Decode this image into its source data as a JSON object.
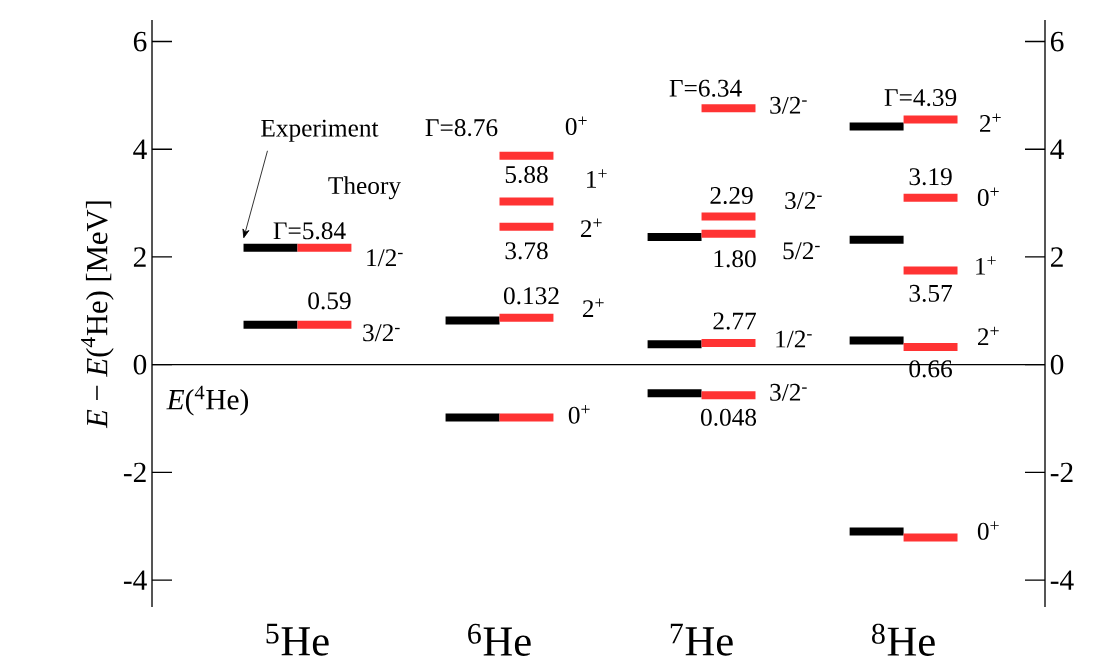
{
  "chart_data": {
    "type": "line",
    "ylabel": "*E* − *E*($^{4}$He)  [MeV]",
    "xlim": [
      4.28,
      8.7
    ],
    "xticks": [
      {
        "value": 5,
        "label": "$^{5}$He"
      },
      {
        "value": 6,
        "label": "$^{6}$He"
      },
      {
        "value": 7,
        "label": "$^{7}$He"
      },
      {
        "value": 8,
        "label": "$^{8}$He"
      }
    ],
    "ylim": [
      -4.5,
      6.4
    ],
    "yticks": [
      -4,
      -2,
      0,
      2,
      4,
      6
    ],
    "y2lim": [
      -4.5,
      6.4
    ],
    "y2ticks": [
      -4,
      -2,
      0,
      2,
      4,
      6
    ],
    "series": [
      {
        "color": "#000000",
        "x": [
          4.733,
          5.0
        ],
        "values": [
          2.17,
          2.17
        ]
      },
      {
        "color": "#000000",
        "x": [
          4.733,
          5.0
        ],
        "values": [
          0.74,
          0.74
        ]
      },
      {
        "color": "#000000",
        "x": [
          5.733,
          6.0
        ],
        "values": [
          0.82,
          0.82
        ]
      },
      {
        "color": "#000000",
        "x": [
          5.733,
          6.0
        ],
        "values": [
          -0.98,
          -0.98
        ]
      },
      {
        "color": "#000000",
        "x": [
          6.733,
          7.0
        ],
        "values": [
          2.37,
          2.37
        ]
      },
      {
        "color": "#000000",
        "x": [
          6.733,
          7.0
        ],
        "values": [
          0.38,
          0.38
        ]
      },
      {
        "color": "#000000",
        "x": [
          6.733,
          7.0
        ],
        "values": [
          -0.53,
          -0.53
        ]
      },
      {
        "color": "#000000",
        "x": [
          7.733,
          8.0
        ],
        "values": [
          4.42,
          4.42
        ]
      },
      {
        "color": "#000000",
        "x": [
          7.733,
          8.0
        ],
        "values": [
          2.32,
          2.32
        ]
      },
      {
        "color": "#000000",
        "x": [
          7.733,
          8.0
        ],
        "values": [
          0.45,
          0.45
        ]
      },
      {
        "color": "#000000",
        "x": [
          7.733,
          8.0
        ],
        "values": [
          -3.1,
          -3.1
        ]
      },
      {
        "color": "#ff3333",
        "x": [
          5.0,
          5.267
        ],
        "values": [
          2.17,
          2.17
        ]
      },
      {
        "color": "#ff3333",
        "x": [
          5.0,
          5.267
        ],
        "values": [
          0.74,
          0.74
        ]
      },
      {
        "color": "#ff3333",
        "x": [
          6.0,
          6.267
        ],
        "values": [
          3.88,
          3.88
        ]
      },
      {
        "color": "#ff3333",
        "x": [
          6.0,
          6.267
        ],
        "values": [
          3.03,
          3.03
        ]
      },
      {
        "color": "#ff3333",
        "x": [
          6.0,
          6.267
        ],
        "values": [
          2.56,
          2.56
        ]
      },
      {
        "color": "#ff3333",
        "x": [
          6.0,
          6.267
        ],
        "values": [
          0.87,
          0.87
        ]
      },
      {
        "color": "#ff3333",
        "x": [
          6.0,
          6.267
        ],
        "values": [
          -0.98,
          -0.98
        ]
      },
      {
        "color": "#ff3333",
        "x": [
          7.0,
          7.267
        ],
        "values": [
          4.76,
          4.76
        ]
      },
      {
        "color": "#ff3333",
        "x": [
          7.0,
          7.267
        ],
        "values": [
          2.75,
          2.75
        ]
      },
      {
        "color": "#ff3333",
        "x": [
          7.0,
          7.267
        ],
        "values": [
          2.43,
          2.43
        ]
      },
      {
        "color": "#ff3333",
        "x": [
          7.0,
          7.267
        ],
        "values": [
          0.4,
          0.4
        ]
      },
      {
        "color": "#ff3333",
        "x": [
          7.0,
          7.267
        ],
        "values": [
          -0.57,
          -0.57
        ]
      },
      {
        "color": "#ff3333",
        "x": [
          8.0,
          8.267
        ],
        "values": [
          4.55,
          4.55
        ]
      },
      {
        "color": "#ff3333",
        "x": [
          8.0,
          8.267
        ],
        "values": [
          3.1,
          3.1
        ]
      },
      {
        "color": "#ff3333",
        "x": [
          8.0,
          8.267
        ],
        "values": [
          1.75,
          1.75
        ]
      },
      {
        "color": "#ff3333",
        "x": [
          8.0,
          8.267
        ],
        "values": [
          0.33,
          0.33
        ]
      },
      {
        "color": "#ff3333",
        "x": [
          8.0,
          8.267
        ],
        "values": [
          -3.21,
          -3.21
        ]
      }
    ],
    "ref_lines": [
      {
        "axis": "y",
        "value": 0,
        "label": "*E*($^{4}$He)"
      }
    ],
    "annotations": [
      "Γ=5.84",
      "1/2$^{-}$",
      "0.59",
      "3/2$^{-}$",
      "Γ=8.76",
      "0$^{+}$",
      "5.88",
      "1$^{+}$",
      "2$^{+}$",
      "3.78",
      "0.132",
      "2$^{+}$",
      "0$^{+}$",
      "Γ=6.34",
      "3/2$^{-}$",
      "2.29",
      "3/2$^{-}$",
      "1.80",
      "5/2$^{-}$",
      "2.77",
      "1/2$^{-}$",
      "3/2$^{-}$",
      "0.048",
      "Γ=4.39",
      "2$^{+}$",
      "3.19",
      "0$^{+}$",
      "1$^{+}$",
      "3.57",
      "2$^{+}$",
      "0.66",
      "0$^{+}$",
      "Experiment",
      "Theory"
    ]
  }
}
